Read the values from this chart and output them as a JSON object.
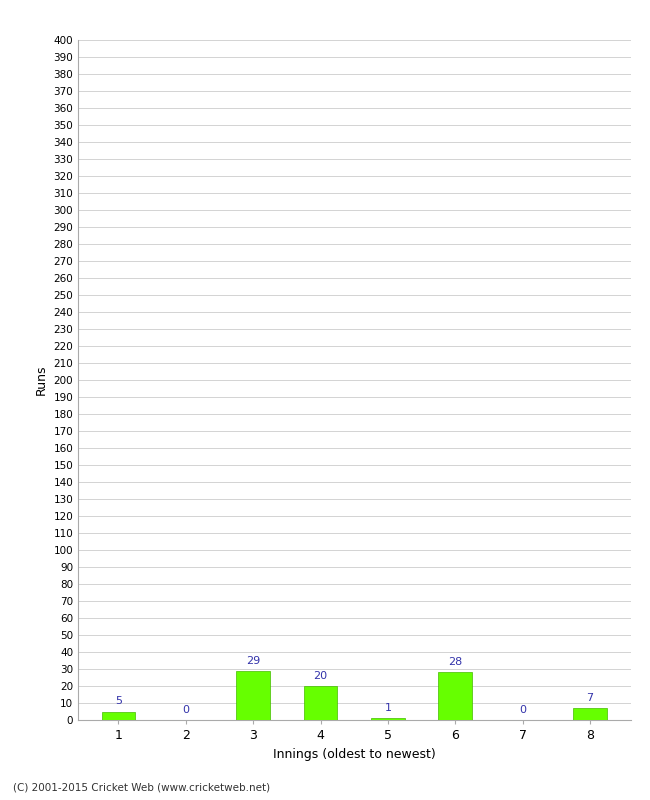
{
  "xlabel": "Innings (oldest to newest)",
  "ylabel": "Runs",
  "categories": [
    "1",
    "2",
    "3",
    "4",
    "5",
    "6",
    "7",
    "8"
  ],
  "values": [
    5,
    0,
    29,
    20,
    1,
    28,
    0,
    7
  ],
  "bar_color": "#66ff00",
  "bar_edge_color": "#44bb00",
  "label_color": "#3333aa",
  "ylim": [
    0,
    400
  ],
  "ytick_step": 10,
  "background_color": "#ffffff",
  "grid_color": "#cccccc",
  "footer": "(C) 2001-2015 Cricket Web (www.cricketweb.net)"
}
